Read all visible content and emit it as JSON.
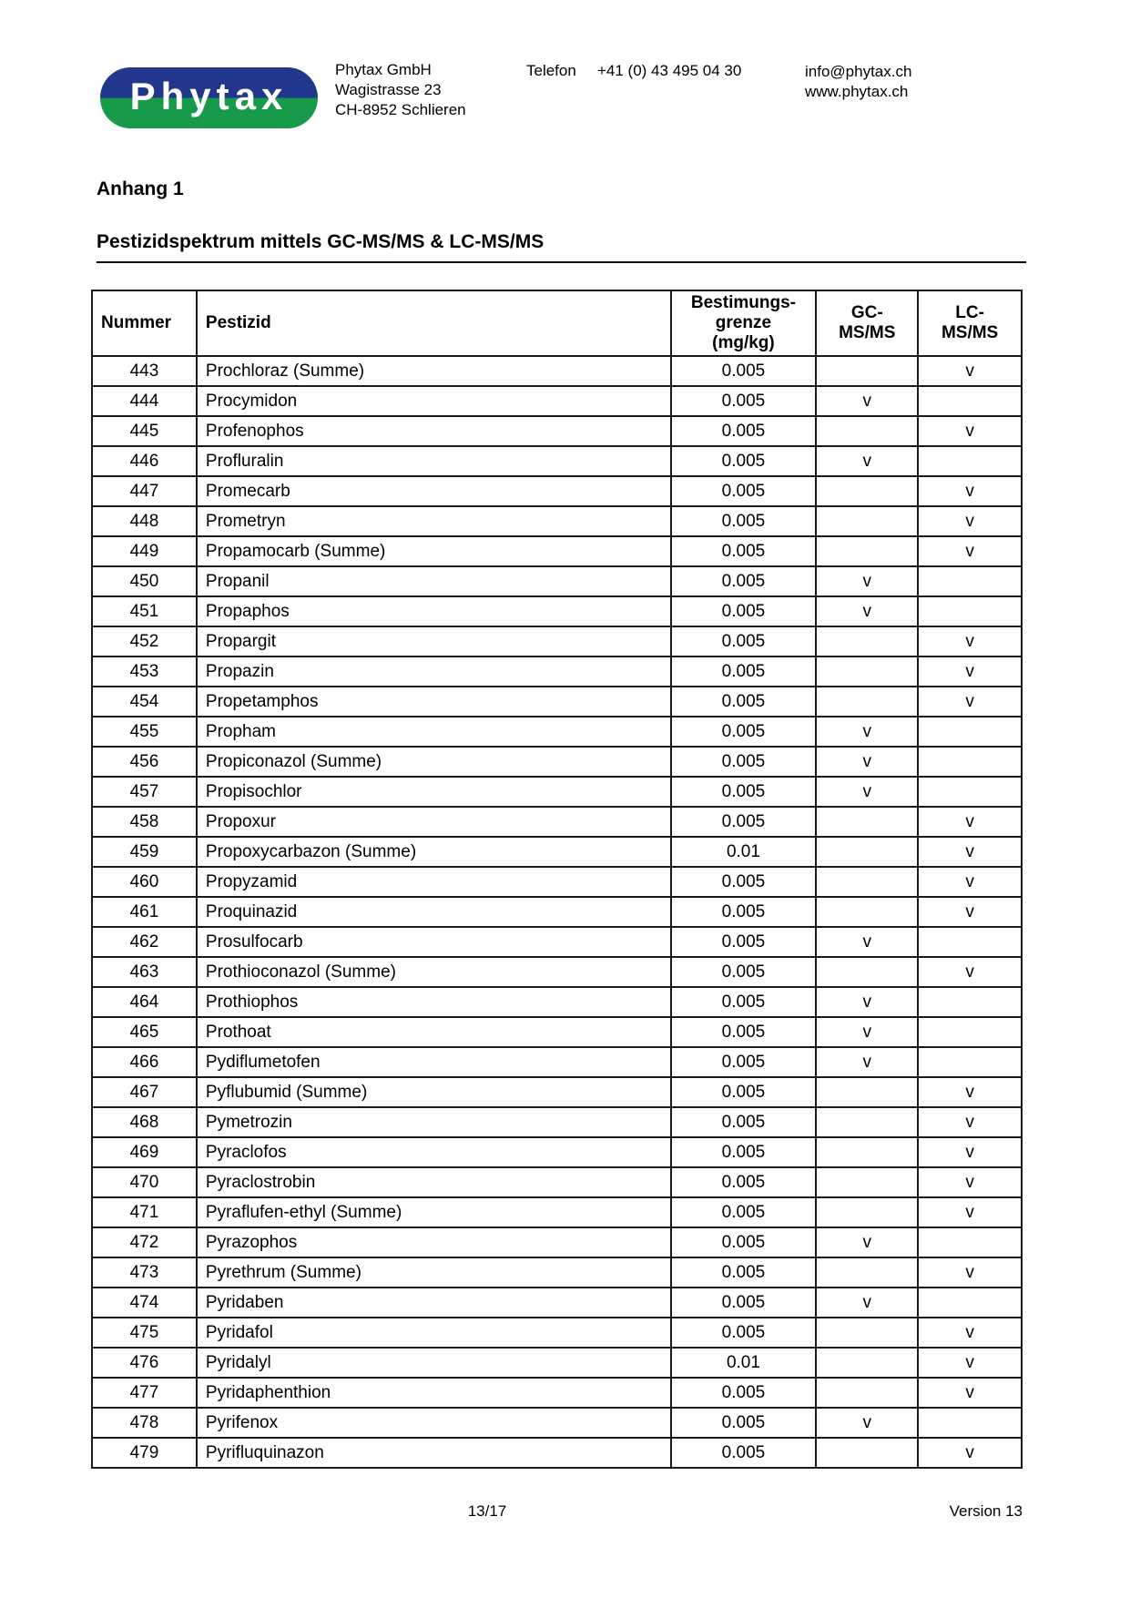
{
  "logo": {
    "text": "Phytax",
    "blue": "#21368c",
    "green": "#179a49"
  },
  "header": {
    "company_name": "Phytax GmbH",
    "street": "Wagistrasse 23",
    "city": "CH-8952 Schlieren",
    "phone_label": "Telefon",
    "phone_number": "+41 (0) 43 495 04 30",
    "email": "info@phytax.ch",
    "website": "www.phytax.ch"
  },
  "section": {
    "title": "Anhang 1",
    "subtitle": "Pestizidspektrum mittels GC-MS/MS & LC-MS/MS"
  },
  "table": {
    "headers": {
      "number": "Nummer",
      "pesticide": "Pestizid",
      "limit": "Bestimungs-\ngrenze\n(mg/kg)",
      "gc": "GC-\nMS/MS",
      "lc": "LC-\nMS/MS"
    },
    "rows": [
      [
        "443",
        "Prochloraz (Summe)",
        "0.005",
        "",
        "v"
      ],
      [
        "444",
        "Procymidon",
        "0.005",
        "v",
        ""
      ],
      [
        "445",
        "Profenophos",
        "0.005",
        "",
        "v"
      ],
      [
        "446",
        "Profluralin",
        "0.005",
        "v",
        ""
      ],
      [
        "447",
        "Promecarb",
        "0.005",
        "",
        "v"
      ],
      [
        "448",
        "Prometryn",
        "0.005",
        "",
        "v"
      ],
      [
        "449",
        "Propamocarb (Summe)",
        "0.005",
        "",
        "v"
      ],
      [
        "450",
        "Propanil",
        "0.005",
        "v",
        ""
      ],
      [
        "451",
        "Propaphos",
        "0.005",
        "v",
        ""
      ],
      [
        "452",
        "Propargit",
        "0.005",
        "",
        "v"
      ],
      [
        "453",
        "Propazin",
        "0.005",
        "",
        "v"
      ],
      [
        "454",
        "Propetamphos",
        "0.005",
        "",
        "v"
      ],
      [
        "455",
        "Propham",
        "0.005",
        "v",
        ""
      ],
      [
        "456",
        "Propiconazol (Summe)",
        "0.005",
        "v",
        ""
      ],
      [
        "457",
        "Propisochlor",
        "0.005",
        "v",
        ""
      ],
      [
        "458",
        "Propoxur",
        "0.005",
        "",
        "v"
      ],
      [
        "459",
        "Propoxycarbazon (Summe)",
        "0.01",
        "",
        "v"
      ],
      [
        "460",
        "Propyzamid",
        "0.005",
        "",
        "v"
      ],
      [
        "461",
        "Proquinazid",
        "0.005",
        "",
        "v"
      ],
      [
        "462",
        "Prosulfocarb",
        "0.005",
        "v",
        ""
      ],
      [
        "463",
        "Prothioconazol (Summe)",
        "0.005",
        "",
        "v"
      ],
      [
        "464",
        "Prothiophos",
        "0.005",
        "v",
        ""
      ],
      [
        "465",
        "Prothoat",
        "0.005",
        "v",
        ""
      ],
      [
        "466",
        "Pydiflumetofen",
        "0.005",
        "v",
        ""
      ],
      [
        "467",
        "Pyflubumid (Summe)",
        "0.005",
        "",
        "v"
      ],
      [
        "468",
        "Pymetrozin",
        "0.005",
        "",
        "v"
      ],
      [
        "469",
        "Pyraclofos",
        "0.005",
        "",
        "v"
      ],
      [
        "470",
        "Pyraclostrobin",
        "0.005",
        "",
        "v"
      ],
      [
        "471",
        "Pyraflufen-ethyl (Summe)",
        "0.005",
        "",
        "v"
      ],
      [
        "472",
        "Pyrazophos",
        "0.005",
        "v",
        ""
      ],
      [
        "473",
        "Pyrethrum (Summe)",
        "0.005",
        "",
        "v"
      ],
      [
        "474",
        "Pyridaben",
        "0.005",
        "v",
        ""
      ],
      [
        "475",
        "Pyridafol",
        "0.005",
        "",
        "v"
      ],
      [
        "476",
        "Pyridalyl",
        "0.01",
        "",
        "v"
      ],
      [
        "477",
        "Pyridaphenthion",
        "0.005",
        "",
        "v"
      ],
      [
        "478",
        "Pyrifenox",
        "0.005",
        "v",
        ""
      ],
      [
        "479",
        "Pyrifluquinazon",
        "0.005",
        "",
        "v"
      ]
    ]
  },
  "footer": {
    "page": "13/17",
    "version": "Version 13"
  }
}
